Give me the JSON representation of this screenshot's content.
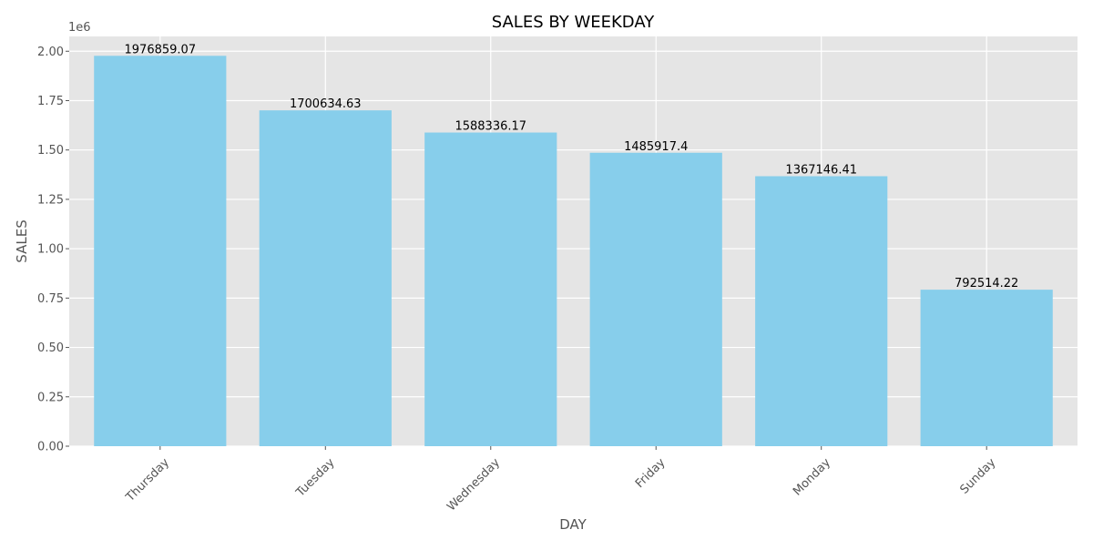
{
  "chart_data": {
    "type": "bar",
    "title": "SALES BY WEEKDAY",
    "xlabel": "DAY",
    "ylabel": "SALES",
    "scale_label": "1e6",
    "categories": [
      "Thursday",
      "Tuesday",
      "Wednesday",
      "Friday",
      "Monday",
      "Sunday"
    ],
    "values": [
      1976859.07,
      1700634.63,
      1588336.17,
      1485917.4,
      1367146.41,
      792514.22
    ],
    "value_labels": [
      "1976859.07",
      "1700634.63",
      "1588336.17",
      "1485917.4",
      "1367146.41",
      "792514.22"
    ],
    "ylim": [
      0,
      2.075
    ],
    "yticks": [
      0,
      0.25,
      0.5,
      0.75,
      1.0,
      1.25,
      1.5,
      1.75,
      2.0
    ],
    "ytick_labels": [
      "0.00",
      "0.25",
      "0.50",
      "0.75",
      "1.00",
      "1.25",
      "1.50",
      "1.75",
      "2.00"
    ],
    "grid": true,
    "colors": {
      "bar": "#87CEEB",
      "plot_background": "#E5E5E5",
      "grid": "#FFFFFF",
      "tick_text": "#555555",
      "label_text": "#555555",
      "title_text": "#000000",
      "value_text": "#000000"
    }
  }
}
